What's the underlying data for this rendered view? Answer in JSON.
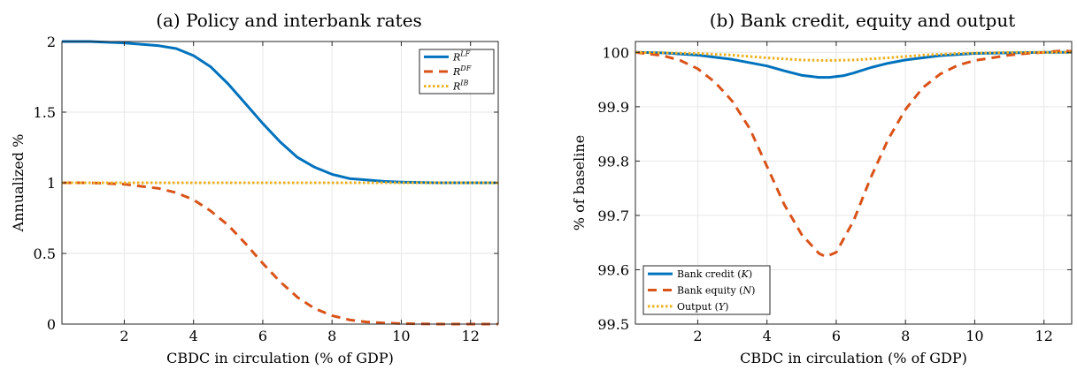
{
  "chart_data": [
    {
      "type": "line",
      "title": "(a) Policy and interbank rates",
      "xlabel": "CBDC in circulation (% of GDP)",
      "ylabel": "Annualized %",
      "xlim": [
        0.2,
        12.8
      ],
      "ylim": [
        0,
        2
      ],
      "xticks": [
        2,
        4,
        6,
        8,
        10,
        12
      ],
      "yticks": [
        0,
        0.5,
        1,
        1.5,
        2
      ],
      "ytick_labels": [
        "0",
        "0.5",
        "1",
        "1.5",
        "2"
      ],
      "grid": true,
      "legend_position": "top-right",
      "series": [
        {
          "name": "R^LF",
          "base": "R",
          "sup": "LF",
          "color": "#0072BD",
          "style": "solid",
          "x": [
            0.2,
            1,
            2,
            3,
            3.5,
            4,
            4.5,
            5,
            5.5,
            6,
            6.5,
            7,
            7.5,
            8,
            8.5,
            9,
            9.5,
            10,
            11,
            12,
            12.8
          ],
          "y": [
            2.0,
            2.0,
            1.99,
            1.97,
            1.95,
            1.9,
            1.82,
            1.7,
            1.56,
            1.42,
            1.29,
            1.18,
            1.11,
            1.06,
            1.03,
            1.02,
            1.01,
            1.005,
            1.0,
            1.0,
            1.0
          ]
        },
        {
          "name": "R^DF",
          "base": "R",
          "sup": "DF",
          "color": "#D95319",
          "style": "dashed",
          "x": [
            0.2,
            1,
            2,
            3,
            3.5,
            4,
            4.5,
            5,
            5.5,
            6,
            6.5,
            7,
            7.5,
            8,
            8.5,
            9,
            9.5,
            10,
            11,
            12,
            12.8
          ],
          "y": [
            1.0,
            1.0,
            0.99,
            0.96,
            0.93,
            0.88,
            0.8,
            0.7,
            0.57,
            0.43,
            0.3,
            0.19,
            0.11,
            0.06,
            0.03,
            0.015,
            0.008,
            0.004,
            0.0,
            0.0,
            0.0
          ]
        },
        {
          "name": "R^IB",
          "base": "R",
          "sup": "IB",
          "color": "#EDB120",
          "style": "dotted",
          "x": [
            0.2,
            12.8
          ],
          "y": [
            1.0,
            1.0
          ]
        }
      ]
    },
    {
      "type": "line",
      "title": "(b) Bank credit, equity and output",
      "xlabel": "CBDC in circulation (% of GDP)",
      "ylabel": "% of baseline",
      "xlim": [
        0.2,
        12.8
      ],
      "ylim": [
        99.5,
        100.02
      ],
      "xticks": [
        2,
        4,
        6,
        8,
        10,
        12
      ],
      "yticks": [
        99.5,
        99.6,
        99.7,
        99.8,
        99.9,
        100
      ],
      "ytick_labels": [
        "99.5",
        "99.6",
        "99.7",
        "99.8",
        "99.9",
        "100"
      ],
      "grid": true,
      "legend_position": "bottom-left",
      "series": [
        {
          "name": "Bank credit (K)",
          "base": "Bank credit",
          "sup": "",
          "var": "K",
          "color": "#0072BD",
          "style": "solid",
          "x": [
            0.2,
            1,
            2,
            3,
            4,
            4.5,
            5,
            5.5,
            5.8,
            6.2,
            6.5,
            7,
            7.5,
            8,
            9,
            10,
            11,
            12,
            12.8
          ],
          "y": [
            100.0,
            99.999,
            99.995,
            99.987,
            99.975,
            99.966,
            99.958,
            99.954,
            99.954,
            99.957,
            99.962,
            99.972,
            99.98,
            99.986,
            99.994,
            99.998,
            99.999,
            100.0,
            100.0
          ]
        },
        {
          "name": "Bank equity (N)",
          "base": "Bank equity",
          "sup": "",
          "var": "N",
          "color": "#D95319",
          "style": "dashed",
          "x": [
            0.2,
            1,
            1.5,
            2,
            2.5,
            3,
            3.5,
            4,
            4.5,
            5,
            5.5,
            5.7,
            6,
            6.5,
            7,
            7.5,
            8,
            8.5,
            9,
            9.5,
            10,
            10.5,
            11,
            11.5,
            12,
            12.5,
            12.8
          ],
          "y": [
            100.0,
            99.994,
            99.985,
            99.97,
            99.945,
            99.91,
            99.86,
            99.79,
            99.72,
            99.665,
            99.63,
            99.624,
            99.632,
            99.69,
            99.77,
            99.84,
            99.895,
            99.935,
            99.96,
            99.976,
            99.985,
            99.99,
            99.995,
            99.998,
            100.0,
            100.003,
            100.002
          ]
        },
        {
          "name": "Output (Y)",
          "base": "Output",
          "sup": "",
          "var": "Y",
          "color": "#EDB120",
          "style": "dotted",
          "x": [
            0.2,
            2,
            3,
            4,
            5,
            5.7,
            6.5,
            7.5,
            8.5,
            9.5,
            11,
            12.8
          ],
          "y": [
            100.0,
            99.998,
            99.995,
            99.99,
            99.986,
            99.985,
            99.986,
            99.99,
            99.995,
            99.998,
            100.0,
            100.0
          ]
        }
      ]
    }
  ]
}
